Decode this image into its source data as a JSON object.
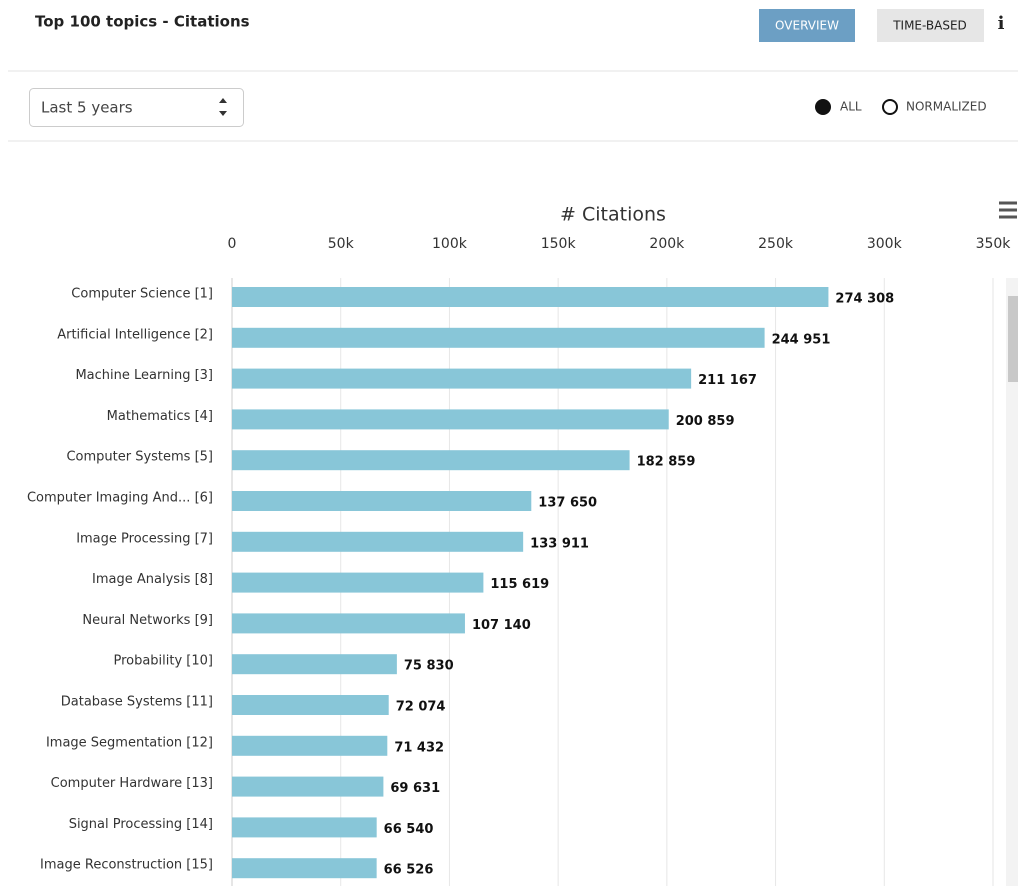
{
  "header": {
    "title": "Top 100 topics - Citations",
    "buttons": [
      "OVERVIEW",
      "TIME-BASED"
    ],
    "info": "i"
  },
  "controls": {
    "select": "Last 5 years",
    "radios": [
      "ALL",
      "NORMALIZED"
    ]
  },
  "chart_data": {
    "type": "bar",
    "orientation": "horizontal",
    "title": "# Citations",
    "color": "#88c6d8",
    "categories": [
      "Computer Science [1]",
      "Artificial Intelligence [2]",
      "Machine Learning [3]",
      "Mathematics [4]",
      "Computer Systems [5]",
      "Computer Imaging And... [6]",
      "Image Processing [7]",
      "Image Analysis [8]",
      "Neural Networks [9]",
      "Probability [10]",
      "Database Systems [11]",
      "Image Segmentation [12]",
      "Computer Hardware [13]",
      "Signal Processing [14]",
      "Image Reconstruction [15]"
    ],
    "values": [
      274308,
      244951,
      211167,
      200859,
      182859,
      137650,
      133911,
      115619,
      107140,
      75830,
      72074,
      71432,
      69631,
      66540,
      66526
    ],
    "value_labels": [
      "274 308",
      "244 951",
      "211 167",
      "200 859",
      "182 859",
      "137 650",
      "133 911",
      "115 619",
      "107 140",
      "75 830",
      "72 074",
      "71 432",
      "69 631",
      "66 540",
      "66 526"
    ],
    "xlim": [
      0,
      350000
    ],
    "xticks": [
      0,
      {
        "value": 50000,
        "label": "50k"
      },
      {
        "value": 100000,
        "label": "100k"
      },
      {
        "value": 150000,
        "label": "150k"
      },
      {
        "value": 200000,
        "label": "200k"
      },
      {
        "value": 250000,
        "label": "250k"
      },
      {
        "value": 300000,
        "label": "300k"
      },
      {
        "value": 350000,
        "label": "350k"
      }
    ],
    "grid": true
  }
}
